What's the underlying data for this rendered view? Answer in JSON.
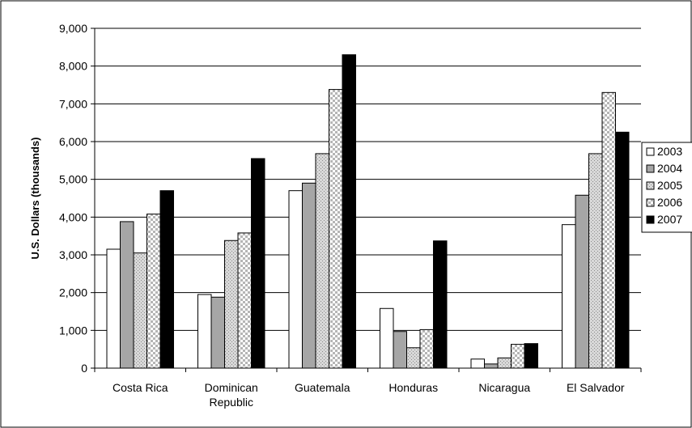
{
  "chart_data": {
    "type": "bar",
    "title": "",
    "xlabel": "",
    "ylabel": "U.S. Dollars (thousands)",
    "ylim": [
      0,
      9000
    ],
    "y_ticks": [
      "0",
      "1,000",
      "2,000",
      "3,000",
      "4,000",
      "5,000",
      "6,000",
      "7,000",
      "8,000",
      "9,000"
    ],
    "y_tick_values": [
      0,
      1000,
      2000,
      3000,
      4000,
      5000,
      6000,
      7000,
      8000,
      9000
    ],
    "grid": true,
    "legend_position": "right",
    "categories": [
      [
        "Costa Rica"
      ],
      [
        "Dominican",
        "Republic"
      ],
      [
        "Guatemala"
      ],
      [
        "Honduras"
      ],
      [
        "Nicaragua"
      ],
      [
        "El Salvador"
      ]
    ],
    "series": [
      {
        "name": "2003",
        "pattern": "white",
        "values": [
          3150,
          1950,
          4700,
          1580,
          240,
          3800
        ]
      },
      {
        "name": "2004",
        "pattern": "gray",
        "values": [
          3880,
          1880,
          4900,
          970,
          110,
          4580
        ]
      },
      {
        "name": "2005",
        "pattern": "dots",
        "values": [
          3050,
          3380,
          5680,
          540,
          270,
          5680
        ]
      },
      {
        "name": "2006",
        "pattern": "checker",
        "values": [
          4080,
          3580,
          7380,
          1020,
          630,
          7300
        ]
      },
      {
        "name": "2007",
        "pattern": "black",
        "values": [
          4700,
          5550,
          8300,
          3370,
          650,
          6250
        ]
      }
    ]
  }
}
